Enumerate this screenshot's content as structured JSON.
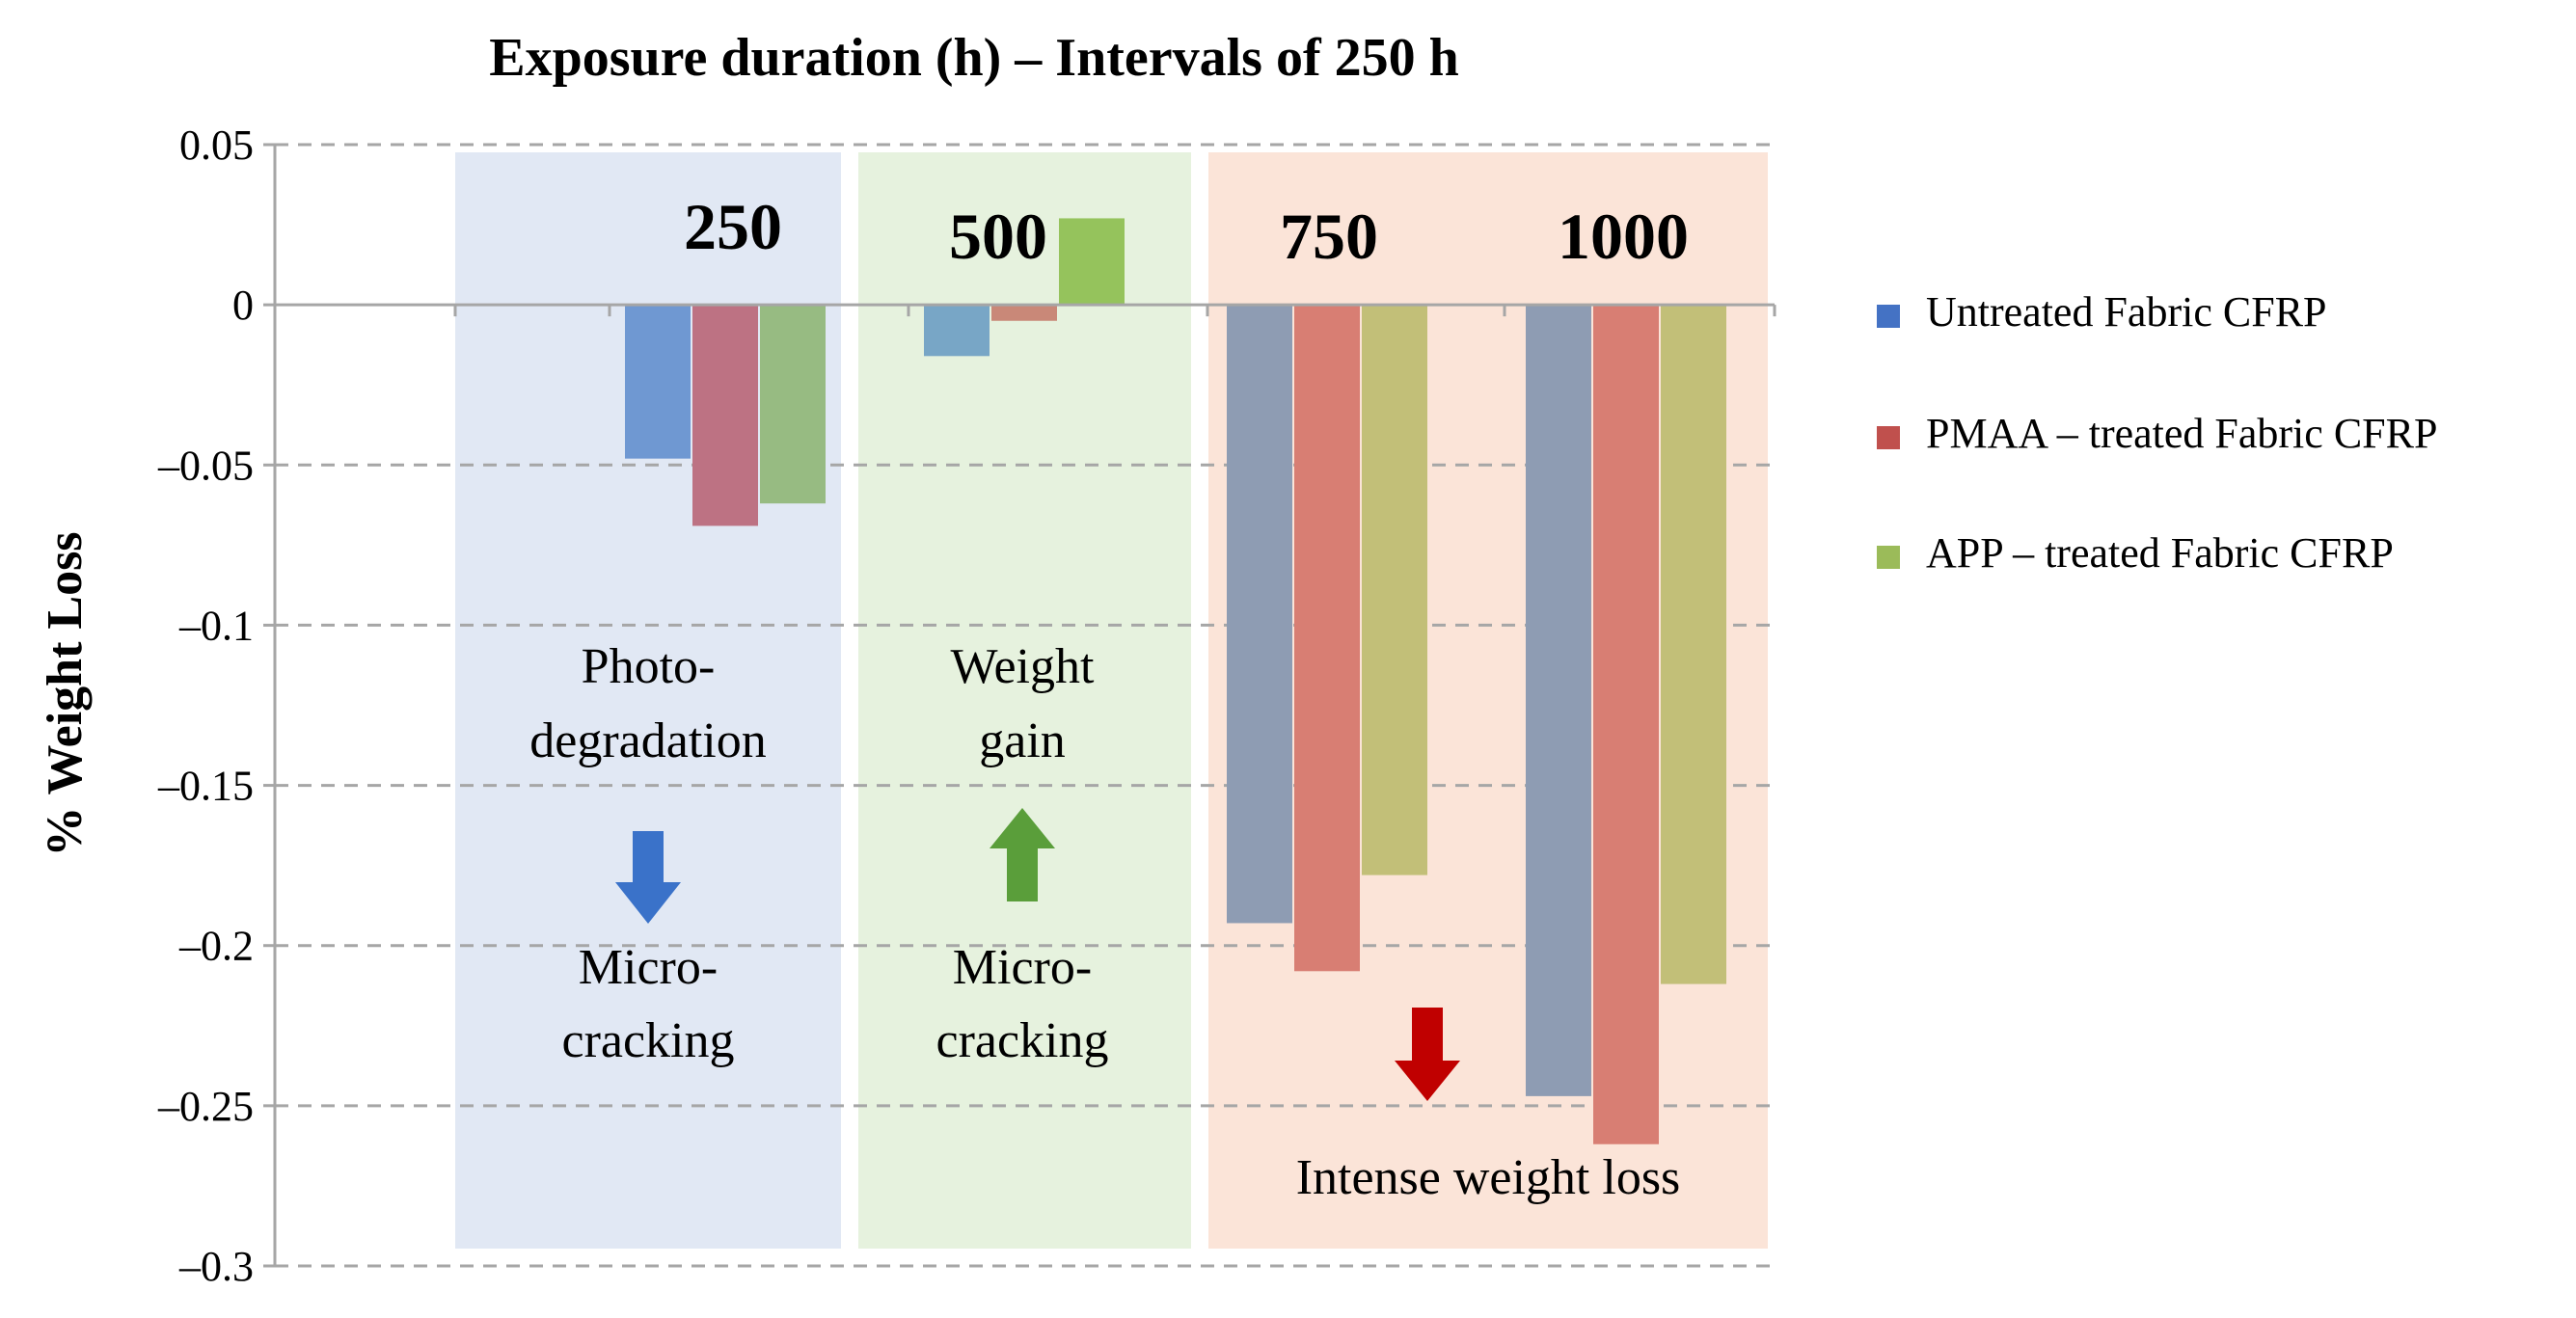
{
  "chart_data": {
    "type": "bar",
    "title": "Exposure duration (h) – Intervals of 250 h",
    "xlabel": "",
    "ylabel": "% Weight Loss",
    "ylim": [
      -0.3,
      0.05
    ],
    "yticks": [
      "0.05",
      "0",
      "–0.05",
      "–0.1",
      "–0.15",
      "–0.2",
      "–0.25",
      "–0.3"
    ],
    "ytick_values": [
      0.05,
      0,
      -0.05,
      -0.1,
      -0.15,
      -0.2,
      -0.25,
      -0.3
    ],
    "grid": true,
    "legend_position": "right",
    "categories": [
      "250",
      "500",
      "750",
      "1000"
    ],
    "series": [
      {
        "name": "Untreated Fabric CFRP",
        "color": "#4472c4",
        "values": [
          -0.048,
          -0.016,
          -0.193,
          -0.247
        ]
      },
      {
        "name": "PMAA – treated Fabric CFRP",
        "color": "#c0504d",
        "values": [
          -0.069,
          -0.005,
          -0.208,
          -0.262
        ]
      },
      {
        "name": "APP – treated Fabric CFRP",
        "color": "#9bbb59",
        "values": [
          -0.062,
          0.027,
          -0.178,
          -0.212
        ]
      }
    ],
    "bar_colors_by_region": {
      "region1": [
        "#6f98d2",
        "#bd7283",
        "#97bb82"
      ],
      "region2": [
        "#78a6c6",
        "#c98878",
        "#95c35c"
      ],
      "region3": [
        "#8e9cb3",
        "#d87e73",
        "#c2bf78"
      ]
    },
    "regions": [
      {
        "name": "photodegradation",
        "color": "#e1e8f4",
        "above": "Photo-\ndegradation",
        "below": "Micro-\ncracking",
        "arrow": "down",
        "arrow_color": "#3a72c9"
      },
      {
        "name": "weight-gain",
        "color": "#e6f2de",
        "above": "Weight\ngain",
        "below": "Micro-\ncracking",
        "arrow": "up",
        "arrow_color": "#5a9e3a"
      },
      {
        "name": "intense-loss",
        "color": "#fbe4d8",
        "above": "",
        "below": "Intense weight loss",
        "arrow": "down",
        "arrow_color": "#c00000"
      }
    ]
  }
}
